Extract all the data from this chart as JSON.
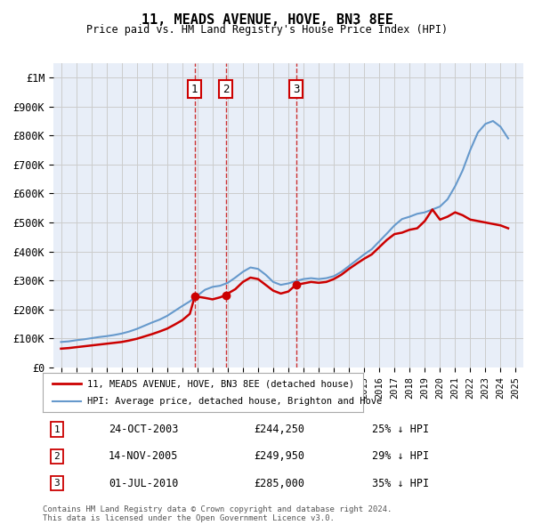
{
  "title": "11, MEADS AVENUE, HOVE, BN3 8EE",
  "subtitle": "Price paid vs. HM Land Registry's House Price Index (HPI)",
  "background_color": "#e8eef8",
  "plot_bg_color": "#e8eef8",
  "ylabel_ticks": [
    "£0",
    "£100K",
    "£200K",
    "£300K",
    "£400K",
    "£500K",
    "£600K",
    "£700K",
    "£800K",
    "£900K",
    "£1M"
  ],
  "ytick_values": [
    0,
    100000,
    200000,
    300000,
    400000,
    500000,
    600000,
    700000,
    800000,
    900000,
    1000000
  ],
  "ylim": [
    0,
    1050000
  ],
  "xlim_start": 1994.5,
  "xlim_end": 2025.5,
  "sale_dates": [
    2003.82,
    2005.88,
    2010.5
  ],
  "sale_prices": [
    244250,
    249950,
    285000
  ],
  "sale_labels": [
    "1",
    "2",
    "3"
  ],
  "hpi_years": [
    1995,
    1995.5,
    1996,
    1996.5,
    1997,
    1997.5,
    1998,
    1998.5,
    1999,
    1999.5,
    2000,
    2000.5,
    2001,
    2001.5,
    2002,
    2002.5,
    2003,
    2003.5,
    2004,
    2004.5,
    2005,
    2005.5,
    2006,
    2006.5,
    2007,
    2007.5,
    2008,
    2008.5,
    2009,
    2009.5,
    2010,
    2010.5,
    2011,
    2011.5,
    2012,
    2012.5,
    2013,
    2013.5,
    2014,
    2014.5,
    2015,
    2015.5,
    2016,
    2016.5,
    2017,
    2017.5,
    2018,
    2018.5,
    2019,
    2019.5,
    2020,
    2020.5,
    2021,
    2021.5,
    2022,
    2022.5,
    2023,
    2023.5,
    2024,
    2024.5
  ],
  "hpi_values": [
    88000,
    90000,
    94000,
    97000,
    101000,
    105000,
    108000,
    112000,
    117000,
    124000,
    133000,
    144000,
    155000,
    165000,
    178000,
    195000,
    212000,
    228000,
    248000,
    268000,
    278000,
    282000,
    292000,
    310000,
    330000,
    345000,
    340000,
    320000,
    295000,
    285000,
    290000,
    298000,
    305000,
    308000,
    305000,
    308000,
    315000,
    330000,
    350000,
    370000,
    390000,
    408000,
    435000,
    462000,
    490000,
    512000,
    520000,
    530000,
    535000,
    545000,
    555000,
    580000,
    625000,
    680000,
    750000,
    810000,
    840000,
    850000,
    830000,
    790000
  ],
  "property_years": [
    1995,
    1995.5,
    1996,
    1996.5,
    1997,
    1997.5,
    1998,
    1998.5,
    1999,
    1999.5,
    2000,
    2000.5,
    2001,
    2001.5,
    2002,
    2002.5,
    2003,
    2003.5,
    2003.82,
    2004,
    2004.5,
    2005,
    2005.5,
    2005.88,
    2006,
    2006.5,
    2007,
    2007.5,
    2008,
    2008.5,
    2009,
    2009.5,
    2010,
    2010.5,
    2010.5,
    2011,
    2011.5,
    2012,
    2012.5,
    2013,
    2013.5,
    2014,
    2014.5,
    2015,
    2015.5,
    2016,
    2016.5,
    2017,
    2017.5,
    2018,
    2018.5,
    2019,
    2019.5,
    2020,
    2020.5,
    2021,
    2021.5,
    2022,
    2022.5,
    2023,
    2023.5,
    2024,
    2024.5
  ],
  "property_values": [
    65000,
    67000,
    70000,
    73000,
    76000,
    79000,
    82000,
    85000,
    88000,
    93000,
    99000,
    107000,
    115000,
    124000,
    134000,
    148000,
    163000,
    185000,
    244250,
    244250,
    240000,
    235000,
    242000,
    249950,
    255000,
    270000,
    295000,
    310000,
    305000,
    285000,
    265000,
    255000,
    262000,
    285000,
    285000,
    290000,
    295000,
    292000,
    295000,
    305000,
    320000,
    340000,
    358000,
    375000,
    390000,
    415000,
    440000,
    460000,
    465000,
    475000,
    480000,
    505000,
    545000,
    510000,
    520000,
    535000,
    525000,
    510000,
    505000,
    500000,
    495000,
    490000,
    480000
  ],
  "legend_line1": "11, MEADS AVENUE, HOVE, BN3 8EE (detached house)",
  "legend_line2": "HPI: Average price, detached house, Brighton and Hove",
  "sale_info": [
    {
      "num": "1",
      "date": "24-OCT-2003",
      "price": "£244,250",
      "pct": "25% ↓ HPI"
    },
    {
      "num": "2",
      "date": "14-NOV-2005",
      "price": "£249,950",
      "pct": "29% ↓ HPI"
    },
    {
      "num": "3",
      "date": "01-JUL-2010",
      "price": "£285,000",
      "pct": "35% ↓ HPI"
    }
  ],
  "footer": "Contains HM Land Registry data © Crown copyright and database right 2024.\nThis data is licensed under the Open Government Licence v3.0.",
  "red_color": "#cc0000",
  "blue_color": "#6699cc",
  "vline_color": "#cc3333",
  "grid_color": "#cccccc",
  "box_color": "#cc0000"
}
